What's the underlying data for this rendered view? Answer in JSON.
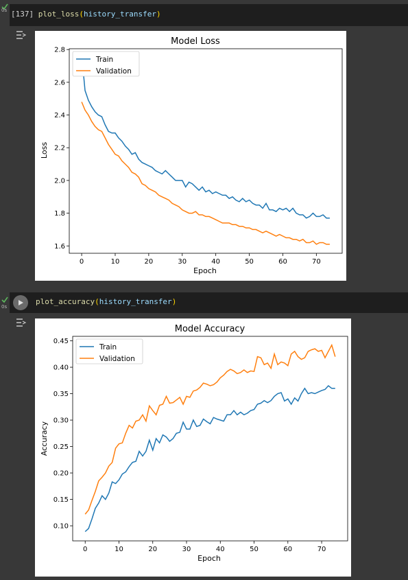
{
  "cells": [
    {
      "exec_count": "[137]",
      "time": "0s",
      "code": {
        "fn": "plot_loss",
        "open": "(",
        "arg": "history_transfer",
        "close": ")"
      }
    },
    {
      "time": "0s",
      "code": {
        "fn": "plot_accuracy",
        "open": "(",
        "arg": "history_transfer",
        "close": ")"
      }
    }
  ],
  "colors": {
    "train": "#1f77b4",
    "validation": "#ff7f0e",
    "success": "#5cb85c",
    "code_bg": "#1e1e1e",
    "page_bg": "#383838"
  },
  "icons": {
    "status": "check-icon",
    "run": "play-icon",
    "output": "output-toggle-icon"
  },
  "chart_data": [
    {
      "type": "line",
      "title": "Model Loss",
      "xlabel": "Epoch",
      "ylabel": "Loss",
      "xlim": [
        -3.7,
        77.7
      ],
      "ylim": [
        1.555,
        2.805
      ],
      "xticks": [
        0,
        10,
        20,
        30,
        40,
        50,
        60,
        70
      ],
      "yticks": [
        1.6,
        1.8,
        2.0,
        2.2,
        2.4,
        2.6,
        2.8
      ],
      "ytick_labels": [
        "1.6",
        "1.8",
        "2.0",
        "2.2",
        "2.4",
        "2.6",
        "2.8"
      ],
      "legend": "upper-left",
      "series": [
        {
          "name": "Train",
          "values": [
            2.77,
            2.55,
            2.49,
            2.45,
            2.42,
            2.4,
            2.39,
            2.34,
            2.3,
            2.29,
            2.29,
            2.26,
            2.24,
            2.21,
            2.19,
            2.16,
            2.17,
            2.13,
            2.11,
            2.1,
            2.09,
            2.08,
            2.06,
            2.05,
            2.04,
            2.06,
            2.04,
            2.02,
            2.0,
            2.0,
            2.0,
            1.96,
            1.99,
            1.98,
            1.96,
            1.94,
            1.96,
            1.93,
            1.94,
            1.92,
            1.93,
            1.92,
            1.91,
            1.91,
            1.89,
            1.9,
            1.88,
            1.87,
            1.89,
            1.87,
            1.88,
            1.86,
            1.85,
            1.85,
            1.83,
            1.86,
            1.82,
            1.82,
            1.81,
            1.83,
            1.82,
            1.83,
            1.81,
            1.83,
            1.8,
            1.79,
            1.79,
            1.77,
            1.78,
            1.8,
            1.78,
            1.78,
            1.79,
            1.77,
            1.77
          ]
        },
        {
          "name": "Validation",
          "values": [
            2.48,
            2.43,
            2.4,
            2.36,
            2.33,
            2.31,
            2.3,
            2.26,
            2.22,
            2.19,
            2.16,
            2.15,
            2.12,
            2.1,
            2.08,
            2.05,
            2.04,
            2.02,
            1.98,
            1.97,
            1.95,
            1.94,
            1.93,
            1.91,
            1.9,
            1.89,
            1.88,
            1.86,
            1.85,
            1.84,
            1.82,
            1.81,
            1.8,
            1.8,
            1.81,
            1.79,
            1.79,
            1.78,
            1.78,
            1.77,
            1.76,
            1.75,
            1.74,
            1.74,
            1.74,
            1.73,
            1.73,
            1.72,
            1.72,
            1.71,
            1.71,
            1.7,
            1.7,
            1.69,
            1.68,
            1.69,
            1.68,
            1.67,
            1.66,
            1.67,
            1.66,
            1.65,
            1.65,
            1.64,
            1.64,
            1.63,
            1.64,
            1.62,
            1.62,
            1.63,
            1.61,
            1.62,
            1.62,
            1.61,
            1.61
          ]
        }
      ]
    },
    {
      "type": "line",
      "title": "Model Accuracy",
      "xlabel": "Epoch",
      "ylabel": "Accuracy",
      "xlim": [
        -3.7,
        77.7
      ],
      "ylim": [
        0.0715,
        0.4585
      ],
      "xticks": [
        0,
        10,
        20,
        30,
        40,
        50,
        60,
        70
      ],
      "yticks": [
        0.1,
        0.15,
        0.2,
        0.25,
        0.3,
        0.35,
        0.4,
        0.45
      ],
      "ytick_labels": [
        "0.10",
        "0.15",
        "0.20",
        "0.25",
        "0.30",
        "0.35",
        "0.40",
        "0.45"
      ],
      "legend": "upper-left",
      "series": [
        {
          "name": "Train",
          "values": [
            0.089,
            0.095,
            0.113,
            0.133,
            0.143,
            0.157,
            0.15,
            0.162,
            0.183,
            0.18,
            0.187,
            0.198,
            0.202,
            0.212,
            0.22,
            0.222,
            0.241,
            0.232,
            0.241,
            0.262,
            0.243,
            0.265,
            0.257,
            0.272,
            0.268,
            0.26,
            0.265,
            0.275,
            0.277,
            0.296,
            0.283,
            0.283,
            0.3,
            0.288,
            0.29,
            0.302,
            0.297,
            0.293,
            0.305,
            0.302,
            0.3,
            0.298,
            0.31,
            0.31,
            0.318,
            0.31,
            0.315,
            0.31,
            0.313,
            0.318,
            0.32,
            0.33,
            0.332,
            0.337,
            0.333,
            0.337,
            0.345,
            0.35,
            0.352,
            0.336,
            0.34,
            0.33,
            0.342,
            0.336,
            0.35,
            0.36,
            0.35,
            0.352,
            0.35,
            0.353,
            0.356,
            0.358,
            0.365,
            0.36,
            0.36
          ]
        },
        {
          "name": "Validation",
          "values": [
            0.122,
            0.13,
            0.148,
            0.165,
            0.185,
            0.192,
            0.2,
            0.213,
            0.22,
            0.247,
            0.255,
            0.257,
            0.275,
            0.29,
            0.285,
            0.298,
            0.3,
            0.31,
            0.298,
            0.327,
            0.318,
            0.31,
            0.328,
            0.33,
            0.345,
            0.332,
            0.333,
            0.338,
            0.343,
            0.33,
            0.345,
            0.343,
            0.355,
            0.357,
            0.362,
            0.37,
            0.368,
            0.365,
            0.367,
            0.372,
            0.38,
            0.385,
            0.392,
            0.396,
            0.393,
            0.388,
            0.39,
            0.395,
            0.39,
            0.393,
            0.392,
            0.42,
            0.418,
            0.405,
            0.408,
            0.398,
            0.425,
            0.405,
            0.41,
            0.408,
            0.403,
            0.425,
            0.43,
            0.42,
            0.415,
            0.418,
            0.43,
            0.433,
            0.435,
            0.43,
            0.432,
            0.418,
            0.43,
            0.442,
            0.42
          ]
        }
      ]
    }
  ]
}
